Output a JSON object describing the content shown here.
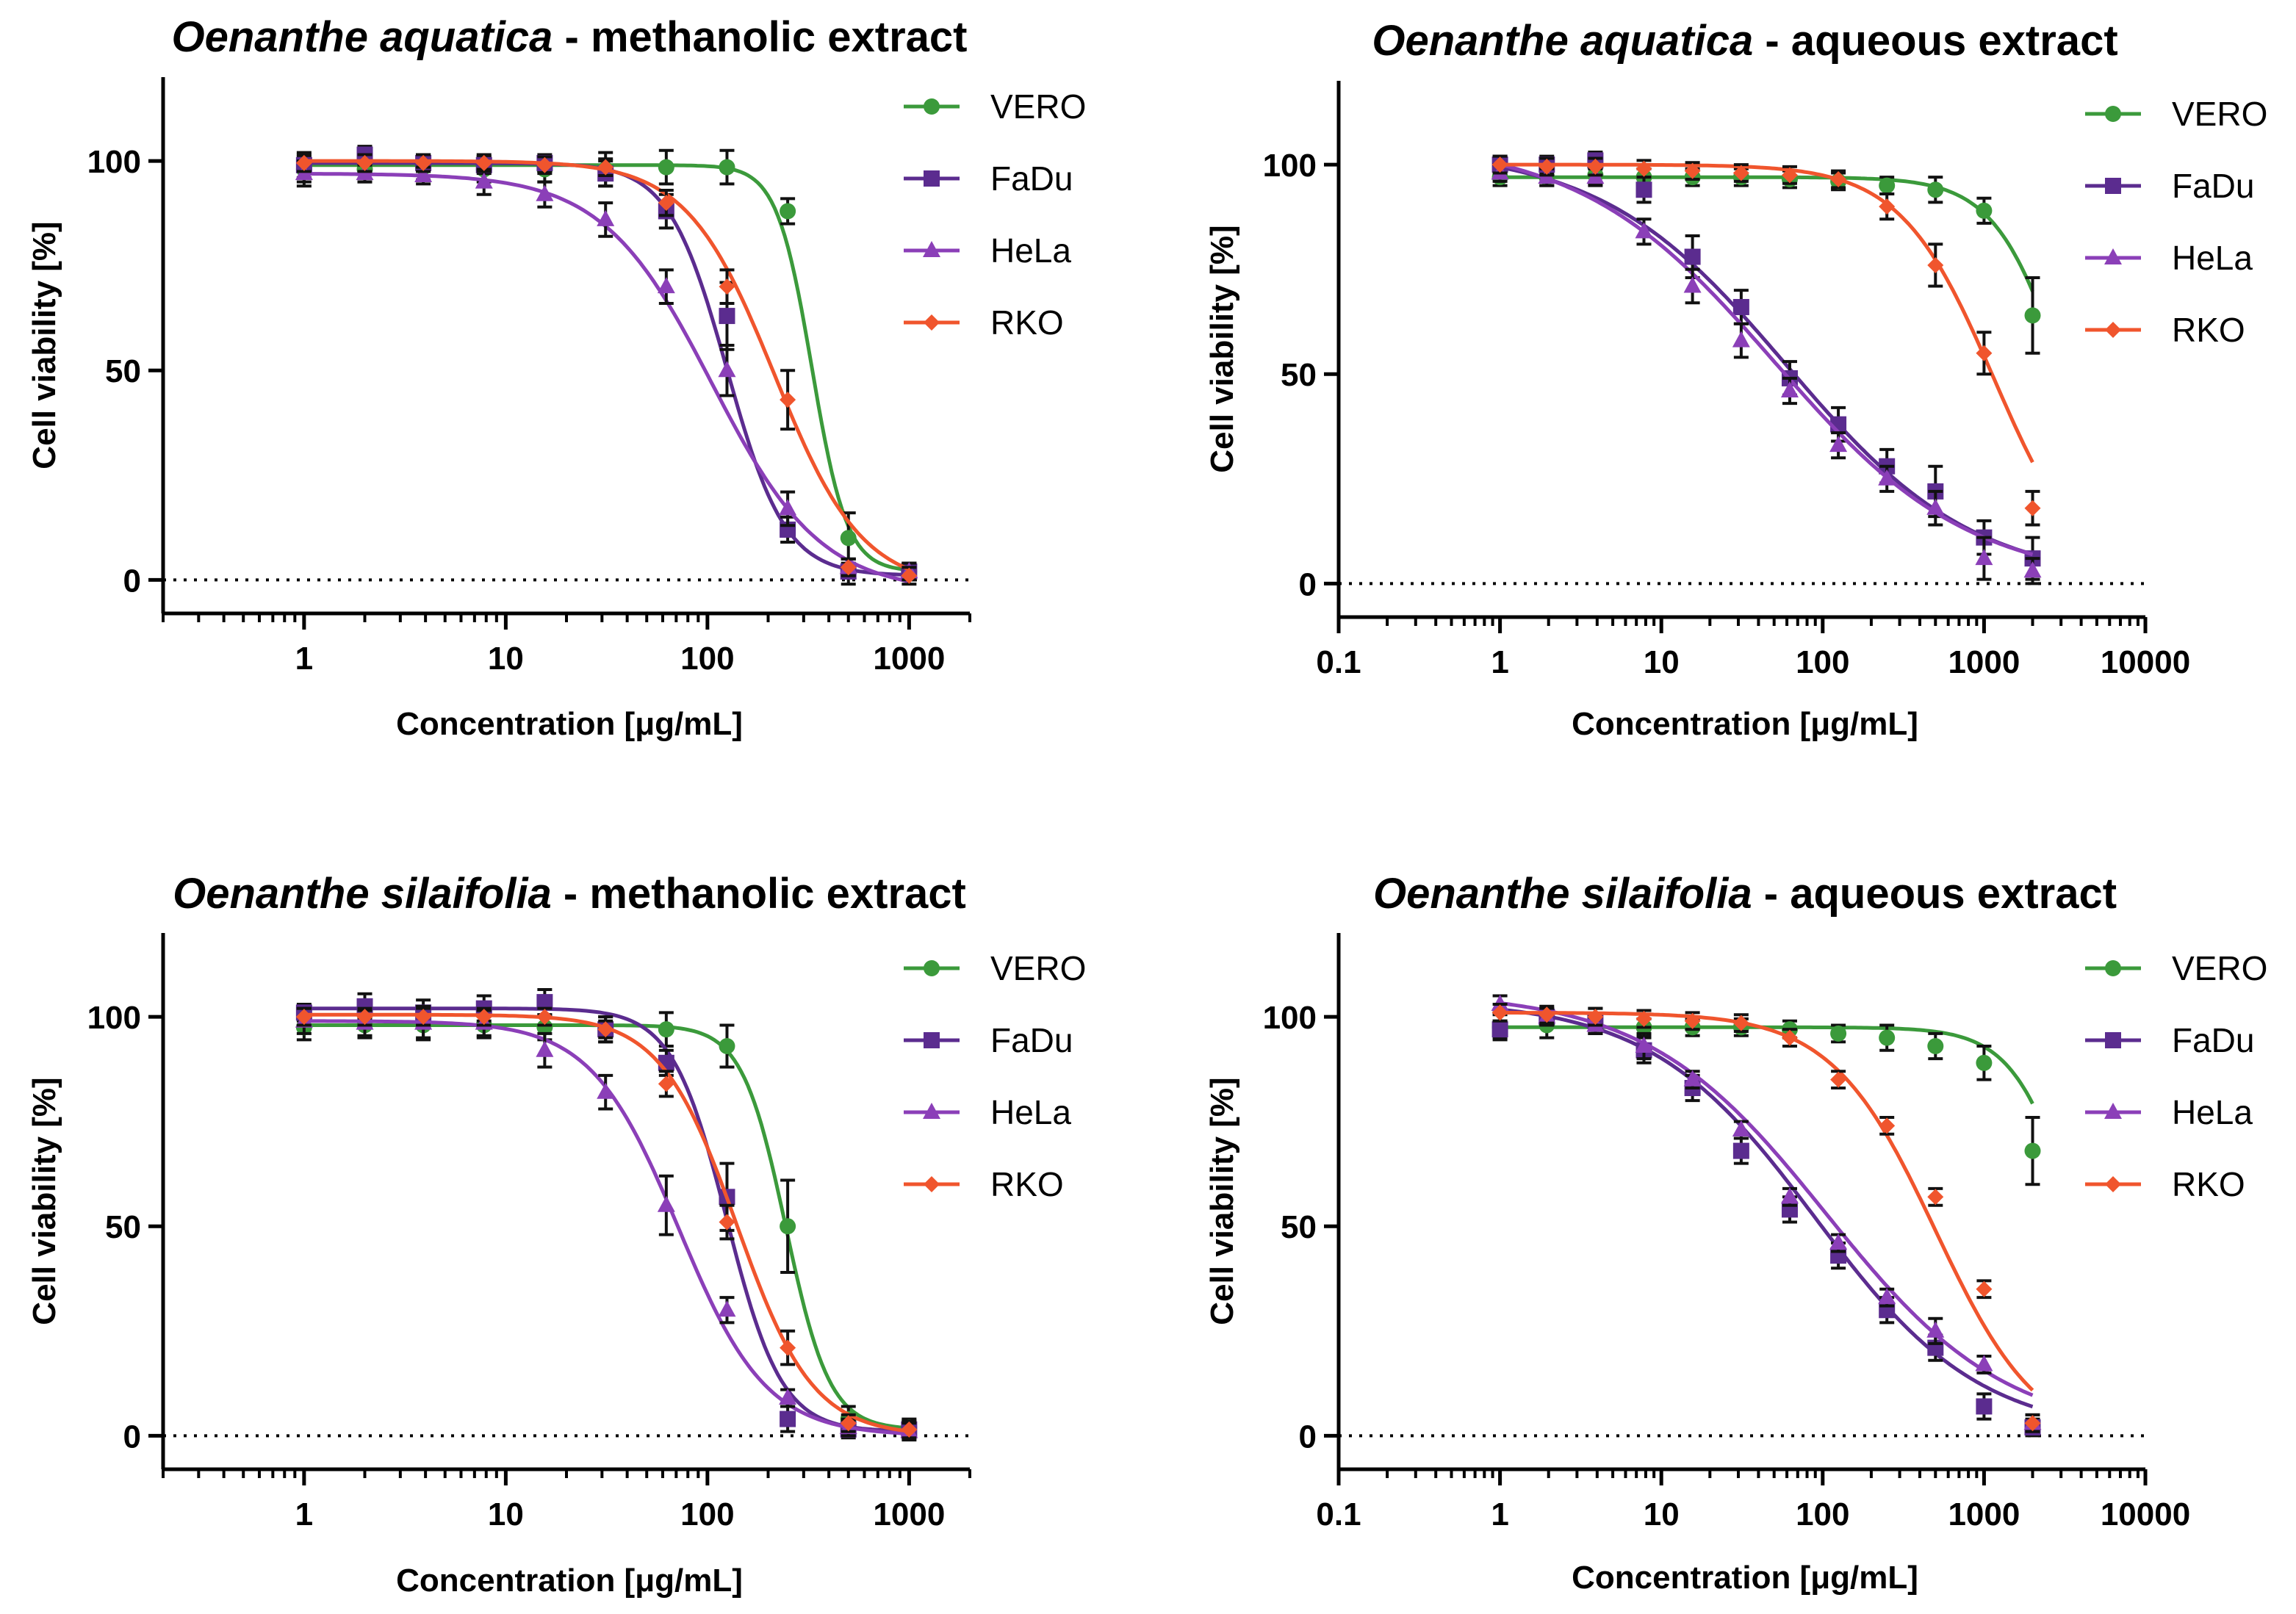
{
  "chart_data": [
    {
      "type": "line",
      "title": {
        "species": "Oenanthe aquatica",
        "extract": " - methanolic extract"
      },
      "xlabel": "Concentration [μg/mL]",
      "ylabel": "Cell viability [%]",
      "xscale": "log",
      "xlim": [
        0.2,
        2000
      ],
      "ylim": [
        -8,
        120
      ],
      "xticks": [
        1,
        10,
        100,
        1000
      ],
      "xtick_labels": [
        "1",
        "10",
        "100",
        "1000"
      ],
      "yticks": [
        0,
        50,
        100
      ],
      "ytick_labels": [
        "0",
        "50",
        "100"
      ],
      "reference_line": 0,
      "legend_position": "top-right",
      "series": [
        {
          "name": "VERO",
          "color": "#3b9a3b",
          "marker": "circle",
          "x": [
            1,
            2,
            3.9,
            7.8,
            15.6,
            31.25,
            62.5,
            125,
            250,
            500,
            1000
          ],
          "y": [
            98,
            98,
            98.5,
            98,
            98,
            98,
            98.5,
            98.5,
            88,
            10,
            2
          ],
          "err": [
            3,
            3,
            3,
            3,
            3,
            4,
            4,
            4,
            3,
            6,
            2
          ],
          "fit": {
            "top": 99,
            "bottom": 2,
            "ec50": 330,
            "hill": 5
          }
        },
        {
          "name": "FaDu",
          "color": "#5b2c8f",
          "marker": "square",
          "x": [
            1,
            2,
            3.9,
            7.8,
            15.6,
            31.25,
            62.5,
            125,
            250,
            500,
            1000
          ],
          "y": [
            99,
            101.5,
            99.5,
            99,
            99.5,
            97,
            88,
            63,
            12,
            2,
            2
          ],
          "err": [
            3,
            2,
            2,
            2,
            2,
            3,
            4,
            8,
            3,
            3,
            2
          ],
          "fit": {
            "top": 99.5,
            "bottom": 1,
            "ec50": 125,
            "hill": 3
          }
        },
        {
          "name": "HeLa",
          "color": "#8b3fb8",
          "marker": "triangle",
          "x": [
            1,
            2,
            3.9,
            7.8,
            15.6,
            31.25,
            62.5,
            125,
            250,
            500,
            1000
          ],
          "y": [
            97,
            97,
            96.5,
            95,
            92,
            86,
            70,
            50,
            17,
            3,
            2
          ],
          "err": [
            3,
            2,
            2,
            3,
            3,
            4,
            4,
            6,
            4,
            2,
            2
          ],
          "fit": {
            "top": 97,
            "bottom": -3,
            "ec50": 105,
            "hill": 1.6
          }
        },
        {
          "name": "RKO",
          "color": "#f0552d",
          "marker": "diamond",
          "x": [
            1,
            2,
            3.9,
            7.8,
            15.6,
            31.25,
            62.5,
            125,
            250,
            500,
            1000
          ],
          "y": [
            99.5,
            99.5,
            99.5,
            99.5,
            99,
            98.5,
            90,
            70,
            43,
            3,
            1
          ],
          "err": [
            2,
            2,
            2,
            2,
            2,
            2,
            3,
            4,
            7,
            2,
            2
          ],
          "fit": {
            "top": 100,
            "bottom": -2,
            "ec50": 215,
            "hill": 2
          }
        }
      ]
    },
    {
      "type": "line",
      "title": {
        "species": "Oenanthe aquatica",
        "extract": " - aqueous extract"
      },
      "xlabel": "Concentration [μg/mL]",
      "ylabel": "Cell viability [%]",
      "xscale": "log",
      "xlim": [
        0.1,
        10000
      ],
      "ylim": [
        -8,
        120
      ],
      "xticks": [
        0.1,
        1,
        10,
        100,
        1000,
        10000
      ],
      "xtick_labels": [
        "0.1",
        "1",
        "10",
        "100",
        "1000",
        "10000"
      ],
      "yticks": [
        0,
        50,
        100
      ],
      "ytick_labels": [
        "0",
        "50",
        "100"
      ],
      "reference_line": 0,
      "legend_position": "top-right",
      "series": [
        {
          "name": "VERO",
          "color": "#3b9a3b",
          "marker": "circle",
          "x": [
            1,
            1.95,
            3.9,
            7.8,
            15.6,
            31.25,
            62.5,
            125,
            250,
            500,
            1000,
            2000
          ],
          "y": [
            97,
            97,
            97.5,
            97,
            97,
            97,
            96.5,
            96,
            95,
            94,
            89,
            64
          ],
          "err": [
            2,
            2,
            2,
            2,
            2,
            2,
            2,
            2,
            2,
            3,
            3,
            9
          ],
          "fit": {
            "top": 97,
            "bottom": 0,
            "ec50": 3200,
            "hill": 2
          }
        },
        {
          "name": "FaDu",
          "color": "#5b2c8f",
          "marker": "square",
          "x": [
            1,
            1.95,
            3.9,
            7.8,
            15.6,
            31.25,
            62.5,
            125,
            250,
            500,
            1000,
            2000
          ],
          "y": [
            100,
            100,
            101,
            94,
            78,
            66,
            49,
            38,
            28,
            22,
            11,
            6
          ],
          "err": [
            2,
            2,
            2,
            3,
            5,
            4,
            4,
            4,
            4,
            6,
            4,
            5
          ],
          "fit": {
            "top": 104,
            "bottom": 0,
            "ec50": 60,
            "hill": 0.75
          }
        },
        {
          "name": "HeLa",
          "color": "#8b3fb8",
          "marker": "triangle",
          "x": [
            1,
            1.95,
            3.9,
            7.8,
            15.6,
            31.25,
            62.5,
            125,
            250,
            500,
            1000,
            2000
          ],
          "y": [
            98,
            97,
            97,
            84,
            71,
            58,
            46,
            33,
            25,
            18,
            6,
            3
          ],
          "err": [
            2,
            2,
            2,
            3,
            4,
            4,
            3,
            3,
            3,
            4,
            5,
            3
          ],
          "fit": {
            "top": 106,
            "bottom": 0,
            "ec50": 50,
            "hill": 0.72
          }
        },
        {
          "name": "RKO",
          "color": "#f0552d",
          "marker": "diamond",
          "x": [
            1,
            1.95,
            3.9,
            7.8,
            15.6,
            31.25,
            62.5,
            125,
            250,
            500,
            1000,
            2000
          ],
          "y": [
            100,
            99.5,
            99.5,
            99,
            98.5,
            98,
            97.5,
            96.5,
            90,
            76,
            55,
            18
          ],
          "err": [
            2,
            2,
            2,
            2,
            2,
            2,
            2,
            2,
            3,
            5,
            5,
            4
          ],
          "fit": {
            "top": 100,
            "bottom": -2,
            "ec50": 1150,
            "hill": 1.5
          }
        }
      ]
    },
    {
      "type": "line",
      "title": {
        "species": "Oenanthe silaifolia",
        "extract": " - methanolic extract"
      },
      "xlabel": "Concentration [μg/mL]",
      "ylabel": "Cell viability [%]",
      "xscale": "log",
      "xlim": [
        0.2,
        2000
      ],
      "ylim": [
        -8,
        120
      ],
      "xticks": [
        1,
        10,
        100,
        1000
      ],
      "xtick_labels": [
        "1",
        "10",
        "100",
        "1000"
      ],
      "yticks": [
        0,
        50,
        100
      ],
      "ytick_labels": [
        "0",
        "50",
        "100"
      ],
      "reference_line": 0,
      "legend_position": "top-right",
      "series": [
        {
          "name": "VERO",
          "color": "#3b9a3b",
          "marker": "circle",
          "x": [
            1,
            2,
            3.9,
            7.8,
            15.6,
            31.25,
            62.5,
            125,
            250,
            500,
            1000
          ],
          "y": [
            97.5,
            98,
            98,
            98,
            97.5,
            97,
            97,
            93,
            50,
            4,
            2
          ],
          "err": [
            3,
            3,
            3,
            3,
            3,
            3,
            4,
            5,
            11,
            3,
            2
          ],
          "fit": {
            "top": 98,
            "bottom": 1.5,
            "ec50": 245,
            "hill": 4
          }
        },
        {
          "name": "FaDu",
          "color": "#5b2c8f",
          "marker": "square",
          "x": [
            1,
            2,
            3.9,
            7.8,
            15.6,
            31.25,
            62.5,
            125,
            250,
            500,
            1000
          ],
          "y": [
            101,
            102.5,
            101,
            102,
            103.5,
            97,
            89,
            57,
            4,
            1.5,
            1.5
          ],
          "err": [
            2,
            3,
            3,
            3,
            3,
            3,
            3,
            8,
            3,
            2,
            2
          ],
          "fit": {
            "top": 102,
            "bottom": 1,
            "ec50": 125,
            "hill": 3.2
          }
        },
        {
          "name": "HeLa",
          "color": "#8b3fb8",
          "marker": "triangle",
          "x": [
            1,
            2,
            3.9,
            7.8,
            15.6,
            31.25,
            62.5,
            125,
            250,
            500,
            1000
          ],
          "y": [
            99,
            98.5,
            98.5,
            98.5,
            92,
            82,
            55,
            30,
            9,
            2,
            1
          ],
          "err": [
            3,
            3,
            4,
            3,
            4,
            4,
            7,
            3,
            2,
            2,
            2
          ],
          "fit": {
            "top": 99,
            "bottom": 0,
            "ec50": 72,
            "hill": 2
          }
        },
        {
          "name": "RKO",
          "color": "#f0552d",
          "marker": "diamond",
          "x": [
            1,
            2,
            3.9,
            7.8,
            15.6,
            31.25,
            62.5,
            125,
            250,
            500,
            1000
          ],
          "y": [
            100,
            100,
            100,
            100,
            100,
            97,
            84,
            51,
            21,
            3,
            1.5
          ],
          "err": [
            2,
            2,
            2,
            2,
            2,
            2,
            3,
            4,
            4,
            2,
            2
          ],
          "fit": {
            "top": 100.5,
            "bottom": 0,
            "ec50": 140,
            "hill": 2.3
          }
        }
      ]
    },
    {
      "type": "line",
      "title": {
        "species": "Oenanthe silaifolia",
        "extract": " - aqueous extract"
      },
      "xlabel": "Concentration [μg/mL]",
      "ylabel": "Cell viability [%]",
      "xscale": "log",
      "xlim": [
        0.1,
        10000
      ],
      "ylim": [
        -8,
        120
      ],
      "xticks": [
        0.1,
        1,
        10,
        100,
        1000,
        10000
      ],
      "xtick_labels": [
        "0.1",
        "1",
        "10",
        "100",
        "1000",
        "10000"
      ],
      "yticks": [
        0,
        50,
        100
      ],
      "ytick_labels": [
        "0",
        "50",
        "100"
      ],
      "reference_line": 0,
      "legend_position": "top-right",
      "series": [
        {
          "name": "VERO",
          "color": "#3b9a3b",
          "marker": "circle",
          "x": [
            1,
            1.95,
            3.9,
            7.8,
            15.6,
            31.25,
            62.5,
            125,
            250,
            500,
            1000,
            2000
          ],
          "y": [
            97.5,
            98,
            98,
            97.5,
            97.5,
            97.5,
            97,
            96,
            95,
            93,
            89,
            68
          ],
          "err": [
            3,
            3,
            2,
            2,
            2,
            2,
            2,
            2,
            3,
            3,
            4,
            8
          ],
          "fit": {
            "top": 97.5,
            "bottom": 0,
            "ec50": 3900,
            "hill": 2.2
          }
        },
        {
          "name": "FaDu",
          "color": "#5b2c8f",
          "marker": "square",
          "x": [
            1,
            1.95,
            3.9,
            7.8,
            15.6,
            31.25,
            62.5,
            125,
            250,
            500,
            1000,
            2000
          ],
          "y": [
            97,
            100,
            99,
            92,
            83,
            68,
            54,
            43,
            30,
            21,
            7,
            2
          ],
          "err": [
            2,
            2,
            3,
            3,
            3,
            3,
            3,
            3,
            3,
            3,
            3,
            2
          ],
          "fit": {
            "top": 104,
            "bottom": 0,
            "ec50": 90,
            "hill": 0.85
          }
        },
        {
          "name": "HeLa",
          "color": "#8b3fb8",
          "marker": "triangle",
          "x": [
            1,
            1.95,
            3.9,
            7.8,
            15.6,
            31.25,
            62.5,
            125,
            250,
            500,
            1000,
            2000
          ],
          "y": [
            103,
            100,
            98,
            93,
            85,
            73,
            57,
            46,
            33,
            25,
            17,
            3
          ],
          "err": [
            2,
            2,
            2,
            3,
            2,
            2,
            2,
            2,
            2,
            3,
            2,
            2
          ],
          "fit": {
            "top": 106,
            "bottom": 0,
            "ec50": 105,
            "hill": 0.78
          }
        },
        {
          "name": "RKO",
          "color": "#f0552d",
          "marker": "diamond",
          "x": [
            1,
            1.95,
            3.9,
            7.8,
            15.6,
            31.25,
            62.5,
            125,
            250,
            500,
            1000,
            2000
          ],
          "y": [
            101,
            100.5,
            100,
            99.5,
            99,
            98.5,
            95,
            85,
            74,
            57,
            35,
            3
          ],
          "err": [
            2,
            2,
            2,
            2,
            2,
            2,
            2,
            2,
            2,
            2,
            2,
            2
          ],
          "fit": {
            "top": 101,
            "bottom": -3,
            "ec50": 500,
            "hill": 1.35
          }
        }
      ]
    }
  ]
}
